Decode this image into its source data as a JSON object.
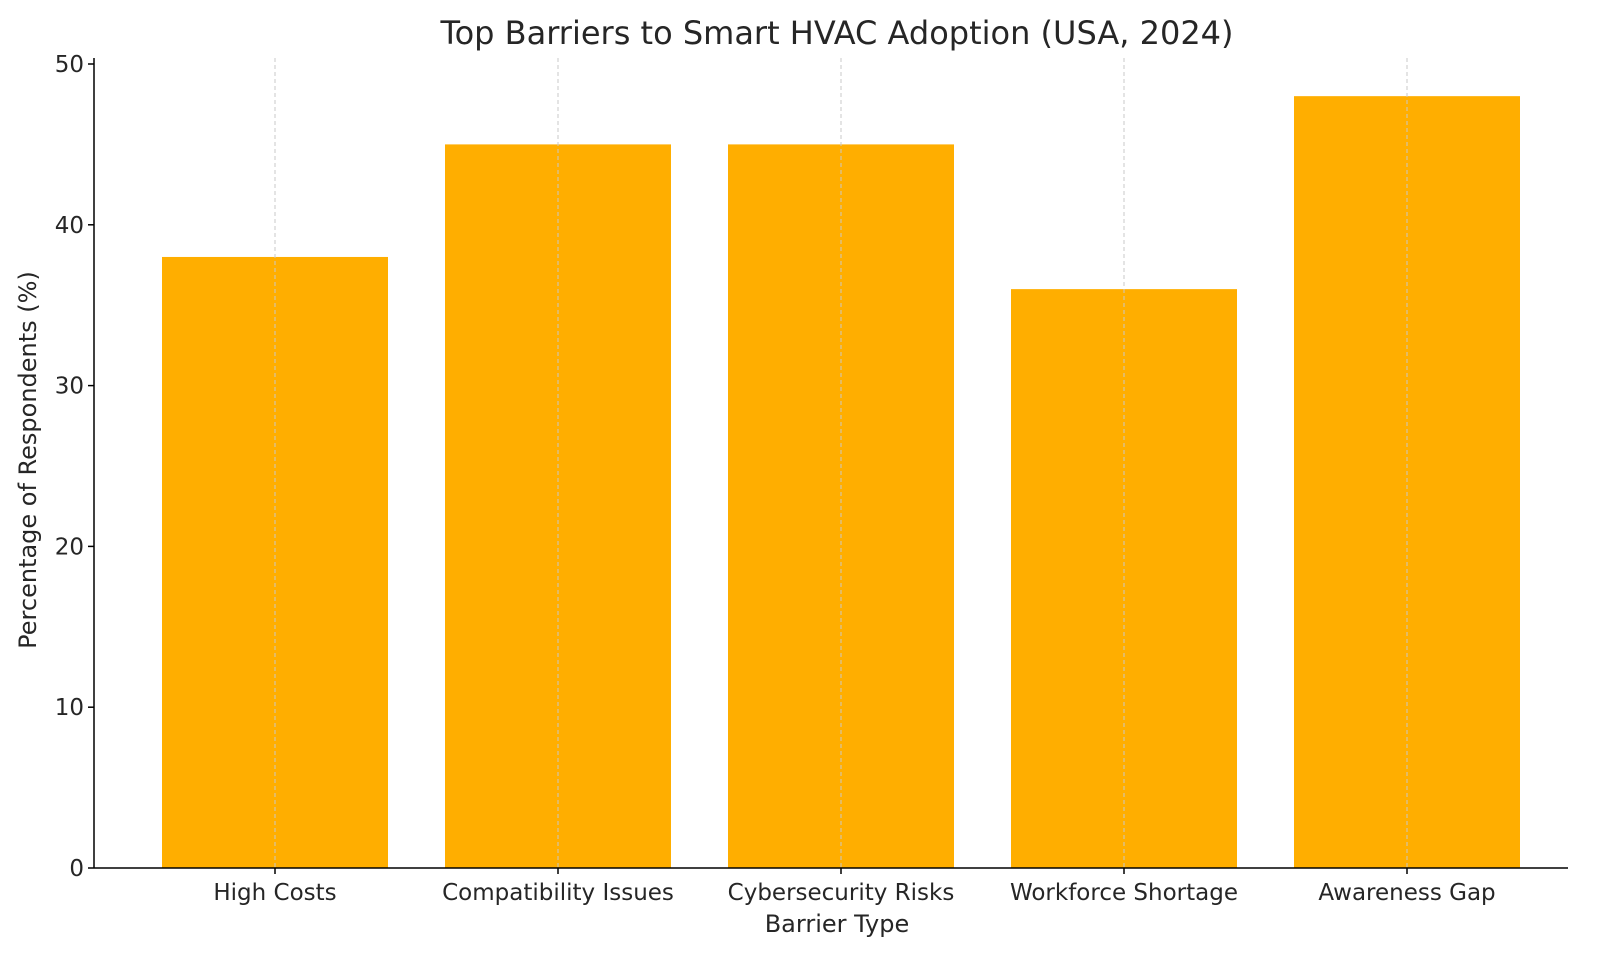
{
  "chart_data": {
    "type": "bar",
    "title": "Top Barriers to Smart HVAC Adoption (USA, 2024)",
    "xlabel": "Barrier Type",
    "ylabel": "Percentage of Respondents (%)",
    "categories": [
      "High Costs",
      "Compatibility Issues",
      "Cybersecurity Risks",
      "Workforce Shortage",
      "Awareness Gap"
    ],
    "values": [
      38,
      45,
      45,
      36,
      48
    ],
    "ylim": [
      0,
      50
    ],
    "yticks": [
      "0",
      "10",
      "20",
      "30",
      "40",
      "50"
    ],
    "grid": "vertical dashed at categories",
    "bar_color": "#FFAE00",
    "grid_color": "#c8c8c8",
    "axis_color": "#000000"
  }
}
